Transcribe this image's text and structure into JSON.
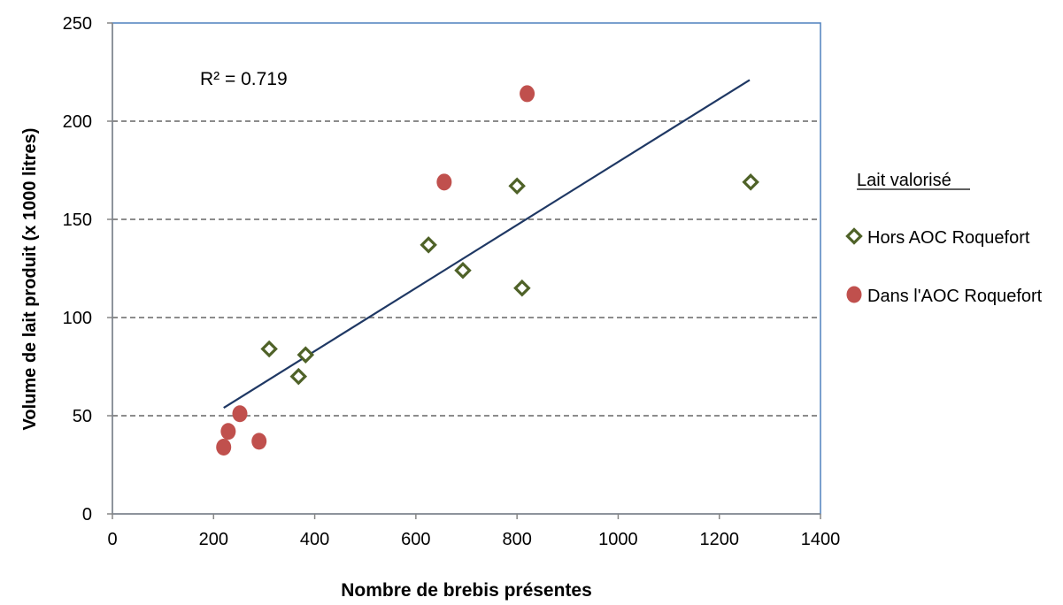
{
  "chart_data": {
    "type": "scatter",
    "xlabel": "Nombre de brebis présentes",
    "ylabel": "Volume de lait produit (x 1000 litres)",
    "xlim": [
      0,
      1400
    ],
    "ylim": [
      0,
      250
    ],
    "xticks": [
      0,
      200,
      400,
      600,
      800,
      1000,
      1200,
      1400
    ],
    "yticks": [
      0,
      50,
      100,
      150,
      200,
      250
    ],
    "grid": "horizontal dashed",
    "legend_title": "Lait valorisé",
    "legend_placement": "right",
    "annotation": "R² = 0.719",
    "trendline": {
      "type": "linear",
      "x": [
        220,
        1260
      ],
      "y": [
        54,
        221
      ],
      "color": "#1f3864"
    },
    "series": [
      {
        "name": "Hors AOC Roquefort",
        "marker": "diamond",
        "color": "#4f6228",
        "x": [
          310,
          368,
          382,
          625,
          693,
          800,
          810,
          1262
        ],
        "y": [
          84,
          70,
          81,
          137,
          124,
          167,
          115,
          169
        ]
      },
      {
        "name": "Dans l'AOC Roquefort",
        "marker": "circle",
        "color": "#c0504d",
        "x": [
          220,
          229,
          252,
          290,
          656,
          820
        ],
        "y": [
          34,
          42,
          51,
          37,
          169,
          214
        ]
      }
    ]
  }
}
